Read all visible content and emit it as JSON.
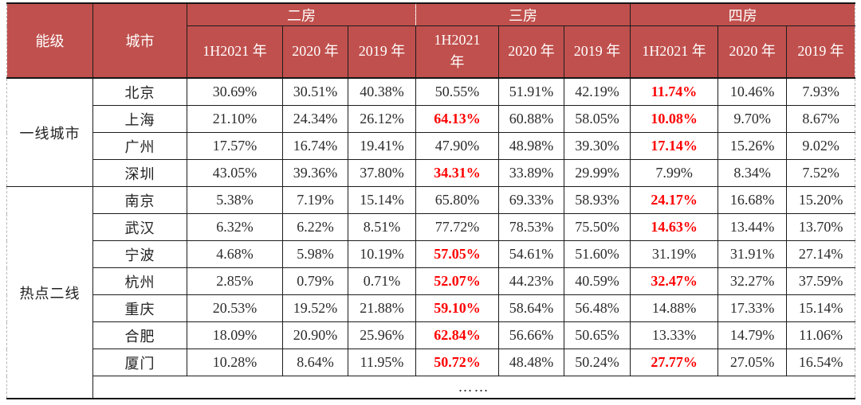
{
  "colors": {
    "header_bg": "#c0504d",
    "header_text": "#ffffff",
    "highlight_text": "#fe0000",
    "grid_line": "#1c1c1c"
  },
  "table": {
    "head": {
      "level": "能级",
      "city": "城市",
      "groups": [
        {
          "label": "二房",
          "years": [
            "1H2021 年",
            "2020 年",
            "2019 年"
          ]
        },
        {
          "label": "三房",
          "years": [
            "1H2021\n年",
            "2020 年",
            "2019 年"
          ]
        },
        {
          "label": "四房",
          "years": [
            "1H2021 年",
            "2020 年",
            "2019 年"
          ]
        }
      ]
    },
    "groups": [
      {
        "level": "一线城市",
        "rows": [
          {
            "city": "北京",
            "values": [
              "30.69%",
              "30.51%",
              "40.38%",
              "50.55%",
              "51.91%",
              "42.19%",
              "11.74%",
              "10.46%",
              "7.93%"
            ],
            "red": [
              6
            ]
          },
          {
            "city": "上海",
            "values": [
              "21.10%",
              "24.34%",
              "26.12%",
              "64.13%",
              "60.88%",
              "58.05%",
              "10.08%",
              "9.70%",
              "8.67%"
            ],
            "red": [
              3,
              6
            ]
          },
          {
            "city": "广州",
            "values": [
              "17.57%",
              "16.74%",
              "19.41%",
              "47.90%",
              "48.98%",
              "39.30%",
              "17.14%",
              "15.26%",
              "9.02%"
            ],
            "red": [
              6
            ]
          },
          {
            "city": "深圳",
            "values": [
              "43.05%",
              "39.36%",
              "37.80%",
              "34.31%",
              "33.89%",
              "29.99%",
              "7.99%",
              "8.34%",
              "7.52%"
            ],
            "red": [
              3
            ]
          }
        ]
      },
      {
        "level": "热点二线",
        "rows": [
          {
            "city": "南京",
            "values": [
              "5.38%",
              "7.19%",
              "15.14%",
              "65.80%",
              "69.33%",
              "58.93%",
              "24.17%",
              "16.68%",
              "15.20%"
            ],
            "red": [
              6
            ]
          },
          {
            "city": "武汉",
            "values": [
              "6.32%",
              "6.22%",
              "8.51%",
              "77.72%",
              "78.53%",
              "75.50%",
              "14.63%",
              "13.44%",
              "13.70%"
            ],
            "red": [
              6
            ]
          },
          {
            "city": "宁波",
            "values": [
              "4.68%",
              "5.98%",
              "10.19%",
              "57.05%",
              "54.61%",
              "51.60%",
              "31.19%",
              "31.91%",
              "27.14%"
            ],
            "red": [
              3
            ]
          },
          {
            "city": "杭州",
            "values": [
              "2.85%",
              "0.79%",
              "0.71%",
              "52.07%",
              "44.23%",
              "40.59%",
              "32.47%",
              "32.27%",
              "37.59%"
            ],
            "red": [
              3,
              6
            ]
          },
          {
            "city": "重庆",
            "values": [
              "20.53%",
              "19.52%",
              "21.88%",
              "59.10%",
              "58.64%",
              "56.48%",
              "14.88%",
              "17.33%",
              "15.14%"
            ],
            "red": [
              3
            ]
          },
          {
            "city": "合肥",
            "values": [
              "18.09%",
              "20.90%",
              "25.96%",
              "62.84%",
              "56.66%",
              "50.65%",
              "13.33%",
              "14.79%",
              "11.06%"
            ],
            "red": [
              3
            ]
          },
          {
            "city": "厦门",
            "values": [
              "10.28%",
              "8.64%",
              "11.95%",
              "50.72%",
              "48.48%",
              "50.24%",
              "27.77%",
              "27.05%",
              "16.54%"
            ],
            "red": [
              3,
              6
            ]
          }
        ]
      }
    ],
    "ellipsis": "……"
  }
}
